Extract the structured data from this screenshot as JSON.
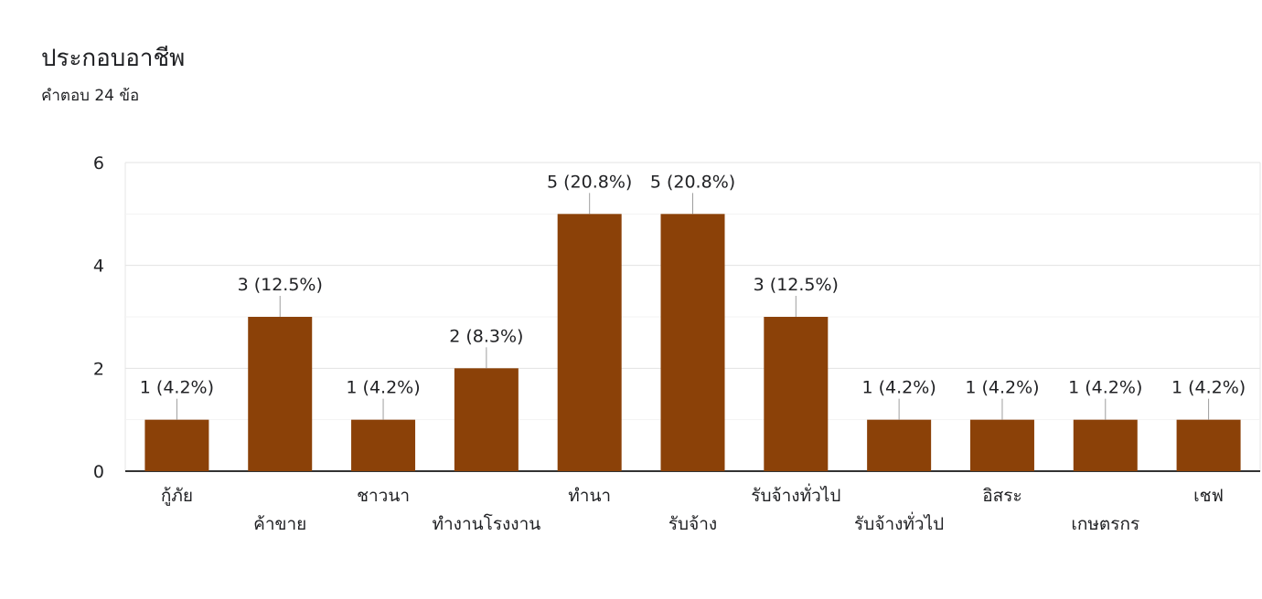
{
  "header": {
    "title": "ประกอบอาชีพ",
    "subtitle": "คำตอบ 24 ข้อ"
  },
  "chart_data": {
    "type": "bar",
    "categories": [
      "กู้ภัย",
      "ค้าขาย",
      "ชาวนา",
      "ทำงานโรงงาน",
      "ทำนา",
      "รับจ้าง",
      "รับจ้างทั่วไป",
      "รับจ้างทั่วไป",
      "อิสระ",
      "เกษตรกร",
      "เชฟ"
    ],
    "values": [
      1,
      3,
      1,
      2,
      5,
      5,
      3,
      1,
      1,
      1,
      1
    ],
    "data_labels": [
      "1 (4.2%)",
      "3 (12.5%)",
      "1 (4.2%)",
      "2 (8.3%)",
      "5 (20.8%)",
      "5 (20.8%)",
      "3 (12.5%)",
      "1 (4.2%)",
      "1 (4.2%)",
      "1 (4.2%)",
      "1 (4.2%)"
    ],
    "ylim": [
      0,
      6
    ],
    "yticks": [
      "0",
      "2",
      "4",
      "6"
    ],
    "grid": true,
    "bar_color": "#8b4108"
  }
}
